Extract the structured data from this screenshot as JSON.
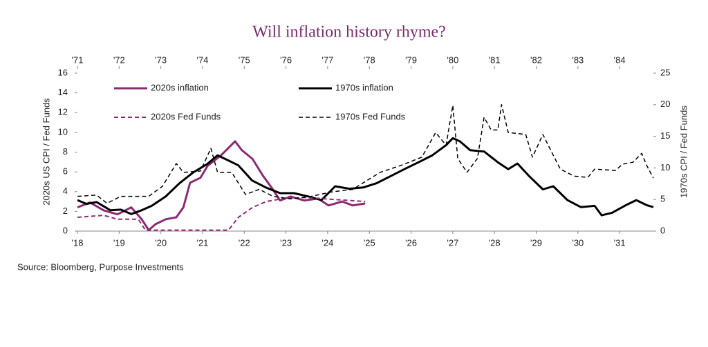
{
  "chart_data": {
    "type": "line",
    "title": "Will inflation history rhyme?",
    "y_label": "2020s US CPI / Fed Funds",
    "y2_label": "1970s CPI / Fed Funds",
    "source": "Source: Bloomberg, Purpose Investments",
    "xlim": [
      2018,
      2031.81
    ],
    "x2lim": [
      1971,
      1984.81
    ],
    "ylim": [
      0,
      16
    ],
    "y2lim": [
      0,
      25
    ],
    "xticks": [
      {
        "value": 2018,
        "label": "'18"
      },
      {
        "value": 2019,
        "label": "'19"
      },
      {
        "value": 2020,
        "label": "'20"
      },
      {
        "value": 2021,
        "label": "'21"
      },
      {
        "value": 2022,
        "label": "'22"
      },
      {
        "value": 2023,
        "label": "'23"
      },
      {
        "value": 2024,
        "label": "'24"
      },
      {
        "value": 2025,
        "label": "'25"
      },
      {
        "value": 2026,
        "label": "'26"
      },
      {
        "value": 2027,
        "label": "'27"
      },
      {
        "value": 2028,
        "label": "'28"
      },
      {
        "value": 2029,
        "label": "'29"
      },
      {
        "value": 2030,
        "label": "'30"
      },
      {
        "value": 2031,
        "label": "'31"
      }
    ],
    "x2ticks": [
      {
        "value": 1971,
        "label": "'71"
      },
      {
        "value": 1972,
        "label": "'72"
      },
      {
        "value": 1973,
        "label": "'73"
      },
      {
        "value": 1974,
        "label": "'74"
      },
      {
        "value": 1975,
        "label": "'75"
      },
      {
        "value": 1976,
        "label": "'76"
      },
      {
        "value": 1977,
        "label": "'77"
      },
      {
        "value": 1978,
        "label": "'78"
      },
      {
        "value": 1979,
        "label": "'79"
      },
      {
        "value": 1980,
        "label": "'80"
      },
      {
        "value": 1981,
        "label": "'81"
      },
      {
        "value": 1982,
        "label": "'82"
      },
      {
        "value": 1983,
        "label": "'83"
      },
      {
        "value": 1984,
        "label": "'84"
      }
    ],
    "yticks": [
      0,
      2,
      4,
      6,
      8,
      10,
      12,
      14,
      16
    ],
    "y2ticks": [
      0,
      5,
      10,
      15,
      20,
      25
    ],
    "series": [
      {
        "name": "2020s inflation",
        "color": "#8b2a72",
        "dash": "solid",
        "width": 3,
        "axis": "y",
        "xaxis": "x",
        "x": [
          2018.0,
          2018.3,
          2018.63,
          2018.96,
          2019.29,
          2019.54,
          2019.71,
          2019.87,
          2020.12,
          2020.37,
          2020.54,
          2020.7,
          2020.95,
          2021.12,
          2021.45,
          2021.78,
          2021.94,
          2022.2,
          2022.45,
          2022.69,
          2022.86,
          2023.11,
          2023.44,
          2023.77,
          2024.02,
          2024.35,
          2024.6,
          2024.9
        ],
        "values": [
          2.4,
          2.9,
          2.1,
          1.7,
          2.4,
          1.2,
          0.1,
          0.7,
          1.2,
          1.4,
          2.4,
          4.9,
          5.4,
          6.6,
          7.7,
          9.1,
          8.2,
          7.3,
          5.6,
          4.2,
          3.1,
          3.5,
          3.1,
          3.3,
          2.6,
          3.0,
          2.6,
          2.8
        ]
      },
      {
        "name": "1970s inflation",
        "color": "#000000",
        "dash": "solid",
        "width": 3,
        "axis": "y2",
        "xaxis": "x2",
        "x": [
          1971.0,
          1971.22,
          1971.46,
          1971.79,
          1972.04,
          1972.29,
          1972.54,
          1972.78,
          1973.12,
          1973.45,
          1973.78,
          1974.11,
          1974.36,
          1974.61,
          1974.86,
          1975.19,
          1975.52,
          1975.86,
          1976.19,
          1976.52,
          1976.85,
          1977.18,
          1977.52,
          1977.85,
          1978.18,
          1978.51,
          1978.84,
          1979.18,
          1979.51,
          1979.84,
          1980.0,
          1980.17,
          1980.42,
          1980.75,
          1981.08,
          1981.33,
          1981.55,
          1981.83,
          1982.16,
          1982.41,
          1982.75,
          1983.07,
          1983.4,
          1983.57,
          1983.82,
          1984.15,
          1984.4,
          1984.65,
          1984.81
        ],
        "values": [
          4.9,
          4.3,
          4.6,
          3.3,
          3.4,
          2.7,
          3.3,
          4.0,
          5.5,
          7.6,
          9.3,
          10.6,
          12.0,
          11.2,
          10.4,
          8.0,
          6.9,
          6.0,
          6.0,
          5.5,
          4.9,
          7.1,
          6.7,
          6.9,
          7.6,
          8.7,
          9.8,
          10.9,
          12.0,
          13.6,
          14.7,
          14.2,
          12.8,
          12.6,
          10.9,
          9.8,
          10.7,
          8.7,
          6.6,
          7.1,
          4.9,
          3.8,
          4.0,
          2.5,
          2.9,
          4.1,
          4.9,
          4.1,
          3.8
        ]
      },
      {
        "name": "2020s Fed Funds",
        "color": "#8b2a72",
        "dash": "dashed",
        "width": 2,
        "axis": "y",
        "xaxis": "x",
        "x": [
          2018.0,
          2018.63,
          2018.96,
          2019.46,
          2019.63,
          2020.12,
          2020.79,
          2021.62,
          2021.86,
          2022.2,
          2022.53,
          2022.94,
          2023.44,
          2024.9
        ],
        "values": [
          1.4,
          1.6,
          1.2,
          1.2,
          0.1,
          0.1,
          0.1,
          0.1,
          1.4,
          2.4,
          3.0,
          3.3,
          3.4,
          3.0
        ]
      },
      {
        "name": "1970s Fed Funds",
        "color": "#000000",
        "dash": "dashed",
        "width": 1.5,
        "axis": "y2",
        "xaxis": "x2",
        "x": [
          1971.0,
          1971.46,
          1971.71,
          1972.04,
          1972.71,
          1973.04,
          1973.37,
          1973.54,
          1973.95,
          1974.2,
          1974.36,
          1974.7,
          1975.03,
          1975.36,
          1975.69,
          1976.11,
          1976.61,
          1977.1,
          1977.6,
          1978.26,
          1978.76,
          1979.26,
          1979.59,
          1979.84,
          1980.0,
          1980.12,
          1980.34,
          1980.59,
          1980.75,
          1980.92,
          1981.08,
          1981.17,
          1981.33,
          1981.75,
          1981.91,
          1982.16,
          1982.41,
          1982.58,
          1982.91,
          1983.24,
          1983.4,
          1983.9,
          1984.07,
          1984.32,
          1984.53,
          1984.65,
          1984.81
        ],
        "values": [
          5.5,
          5.7,
          4.4,
          5.5,
          5.5,
          7.1,
          10.7,
          9.3,
          9.5,
          13.1,
          9.3,
          9.3,
          5.8,
          6.6,
          5.5,
          5.1,
          5.5,
          6.2,
          6.6,
          9.3,
          10.4,
          11.7,
          15.6,
          13.6,
          19.9,
          11.5,
          9.3,
          11.5,
          18.0,
          16.0,
          16.0,
          20.0,
          15.6,
          15.3,
          11.7,
          15.3,
          12.0,
          9.8,
          8.7,
          8.5,
          9.8,
          9.6,
          10.6,
          10.9,
          12.3,
          10.4,
          8.4
        ]
      }
    ]
  }
}
